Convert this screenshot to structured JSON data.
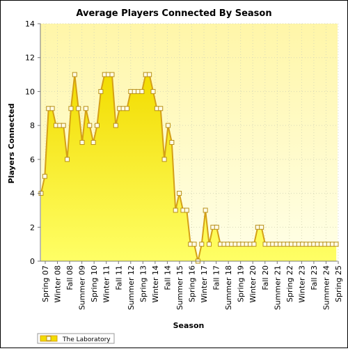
{
  "chart_data": {
    "type": "area",
    "title": "Average Players Connected By Season",
    "xlabel": "Season",
    "ylabel": "Players Connected",
    "ylim": [
      0,
      14
    ],
    "yticks": [
      0,
      2,
      4,
      6,
      8,
      10,
      12,
      14
    ],
    "grid": true,
    "legend": "bottom-left",
    "colors": {
      "fill_top": "#f2dc00",
      "fill_bottom": "#ffff66",
      "line": "#d4a017",
      "marker_fill": "#fffbe6",
      "marker_stroke": "#b8901a",
      "plot_bg_top": "#fff6a8",
      "plot_bg_bottom": "#ffffe8"
    },
    "x_tick_labels": [
      "Spring 07",
      "Winter 08",
      "Fall 08",
      "Summer 09",
      "Spring 10",
      "Winter 11",
      "Fall 11",
      "Summer 12",
      "Spring 13",
      "Winter 14",
      "Fall 14",
      "Summer 15",
      "Spring 16",
      "Winter 17",
      "Fall 17",
      "Summer 18",
      "Spring 19",
      "Winter 20",
      "Fall 20",
      "Summer 21",
      "Spring 22",
      "Winter 23",
      "Fall 23",
      "Summer 24",
      "Spring 25"
    ],
    "series": [
      {
        "name": "The Laboratory",
        "values": [
          4,
          5,
          9,
          9,
          8,
          8,
          8,
          6,
          9,
          11,
          9,
          7,
          9,
          8,
          7,
          8,
          10,
          11,
          11,
          11,
          8,
          9,
          9,
          9,
          10,
          10,
          10,
          10,
          11,
          11,
          10,
          9,
          9,
          6,
          8,
          7,
          3,
          4,
          3,
          3,
          1,
          1,
          0,
          1,
          3,
          1,
          2,
          2,
          1,
          1,
          1,
          1,
          1,
          1,
          1,
          1,
          1,
          1,
          2,
          2,
          1,
          1,
          1,
          1,
          1,
          1,
          1,
          1,
          1,
          1,
          1,
          1,
          1,
          1,
          1,
          1,
          1,
          1,
          1,
          1
        ]
      }
    ]
  }
}
